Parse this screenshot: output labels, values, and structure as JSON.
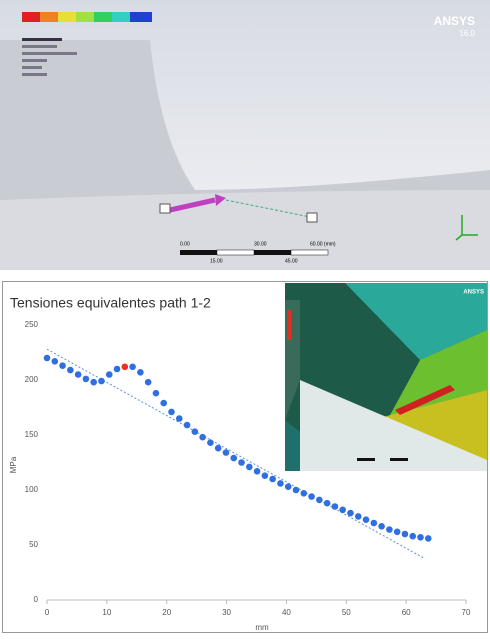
{
  "model_view": {
    "brand": "ANSYS",
    "version": "16.0",
    "scale_top": [
      "0.00",
      "30.00",
      "60.00 (mm)"
    ],
    "scale_bottom": [
      "15.00",
      "45.00"
    ]
  },
  "chart_data": {
    "type": "scatter",
    "title": "Tensiones equivalentes path 1-2",
    "x_label": "mm",
    "y_label": "MPa",
    "series": [
      {
        "color": "#2f6fe0",
        "x": [
          0,
          1.3,
          2.6,
          3.9,
          5.2,
          6.5,
          7.8,
          9.1,
          10.4,
          11.7,
          14.3,
          15.6,
          16.9,
          18.2,
          19.5,
          20.8,
          22.1,
          23.4,
          24.7,
          26,
          27.3,
          28.6,
          29.9,
          31.2,
          32.5,
          33.8,
          35.1,
          36.4,
          37.7,
          39,
          40.3,
          41.6,
          42.9,
          44.2,
          45.5,
          46.8,
          48.1,
          49.4,
          50.7,
          52,
          53.3,
          54.6,
          55.9,
          57.2,
          58.5,
          59.8,
          61.1,
          62.4,
          63.7
        ],
        "values": [
          220,
          217,
          213,
          209,
          205,
          201,
          198,
          199,
          205,
          210,
          212,
          207,
          198,
          188,
          179,
          171,
          165,
          159,
          153,
          148,
          143,
          138,
          134,
          129,
          125,
          121,
          117,
          113,
          110,
          106,
          103,
          100,
          97,
          94,
          91,
          88,
          85,
          82,
          79,
          76,
          73,
          70,
          67,
          64,
          62,
          60,
          58,
          57,
          56
        ]
      },
      {
        "color": "#e8302a",
        "x": [
          13
        ],
        "values": [
          212
        ]
      }
    ],
    "trendline": {
      "color": "#5b8fe0",
      "x": [
        0,
        63
      ],
      "values": [
        228,
        38
      ]
    },
    "xlim": [
      0,
      70
    ],
    "xticks": [
      0,
      10,
      20,
      30,
      40,
      50,
      60,
      70
    ],
    "ylim": [
      0,
      250
    ],
    "yticks": [
      0,
      50,
      100,
      150,
      200,
      250
    ]
  }
}
